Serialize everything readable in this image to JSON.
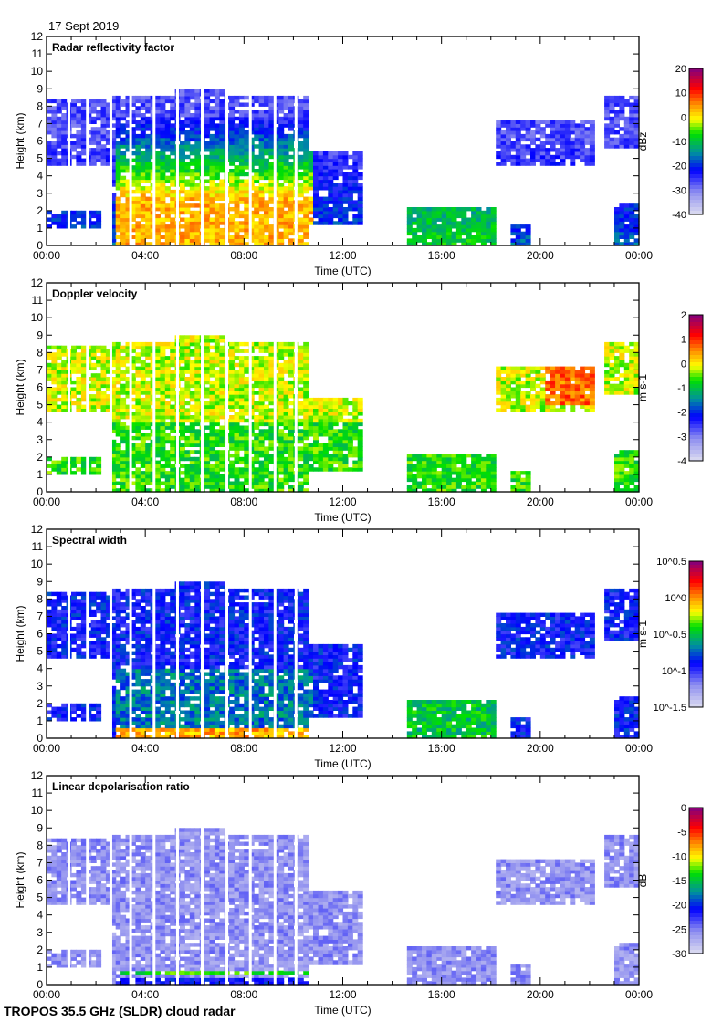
{
  "header": {
    "date": "17 Sept 2019"
  },
  "footer": {
    "instrument": "TROPOS 35.5 GHz (SLDR) cloud radar"
  },
  "chart_data": [
    {
      "type": "heatmap",
      "title": "Radar reflectivity factor",
      "xlabel": "Time (UTC)",
      "ylabel": "Height (km)",
      "units": "dBz",
      "clim": [
        -40,
        20
      ],
      "cbar_ticks": [
        "20",
        "10",
        "0",
        "-10",
        "-20",
        "-30",
        "-40"
      ],
      "mode": "refl"
    },
    {
      "type": "heatmap",
      "title": "Doppler velocity",
      "xlabel": "Time (UTC)",
      "ylabel": "Height (km)",
      "units": "m s-1",
      "clim": [
        -4,
        2
      ],
      "cbar_ticks": [
        "2",
        "1",
        "0",
        "-1",
        "-2",
        "-3",
        "-4"
      ],
      "mode": "vel"
    },
    {
      "type": "heatmap",
      "title": "Spectral width",
      "xlabel": "Time (UTC)",
      "ylabel": "Height (km)",
      "units": "m s-1",
      "clim": [
        -1.5,
        0.5
      ],
      "cbar_ticks": [
        "10^0.5",
        "10^0",
        "10^-0.5",
        "10^-1",
        "10^-1.5"
      ],
      "mode": "width"
    },
    {
      "type": "heatmap",
      "title": "Linear depolarisation ratio",
      "xlabel": "Time (UTC)",
      "ylabel": "Height (km)",
      "units": "dB",
      "clim": [
        -30,
        0
      ],
      "cbar_ticks": [
        "0",
        "-5",
        "-10",
        "-15",
        "-20",
        "-25",
        "-30"
      ],
      "mode": "ldr"
    }
  ],
  "axes": {
    "x_ticks": [
      "00:00",
      "04:00",
      "08:00",
      "12:00",
      "16:00",
      "20:00",
      "00:00"
    ],
    "x_range_hours": [
      0,
      24
    ],
    "y_ticks": [
      "0",
      "1",
      "2",
      "3",
      "4",
      "5",
      "6",
      "7",
      "8",
      "9",
      "10",
      "11",
      "12"
    ],
    "y_range_km": [
      0,
      12
    ]
  },
  "echo_regions": [
    {
      "t": [
        0,
        2.7
      ],
      "h": [
        4.6,
        8.5
      ]
    },
    {
      "t": [
        0,
        2.2
      ],
      "h": [
        1.0,
        2.0
      ]
    },
    {
      "t": [
        2.7,
        10.6
      ],
      "h": [
        0.1,
        8.6
      ]
    },
    {
      "t": [
        5.2,
        7.2
      ],
      "h": [
        0.1,
        9.0
      ]
    },
    {
      "t": [
        10.6,
        12.8
      ],
      "h": [
        1.2,
        5.5
      ]
    },
    {
      "t": [
        14.6,
        18.2
      ],
      "h": [
        0.1,
        2.3
      ]
    },
    {
      "t": [
        18.8,
        19.6
      ],
      "h": [
        0.1,
        1.3
      ]
    },
    {
      "t": [
        18.2,
        22.2
      ],
      "h": [
        4.6,
        7.2
      ]
    },
    {
      "t": [
        22.6,
        24
      ],
      "h": [
        5.6,
        8.6
      ]
    },
    {
      "t": [
        23.0,
        24
      ],
      "h": [
        0.1,
        2.5
      ]
    }
  ],
  "data_gaps_hours": [
    0.85,
    1.6,
    2.55,
    3.35,
    4.3,
    5.25,
    6.25,
    7.25,
    8.2,
    9.2,
    10.05
  ]
}
